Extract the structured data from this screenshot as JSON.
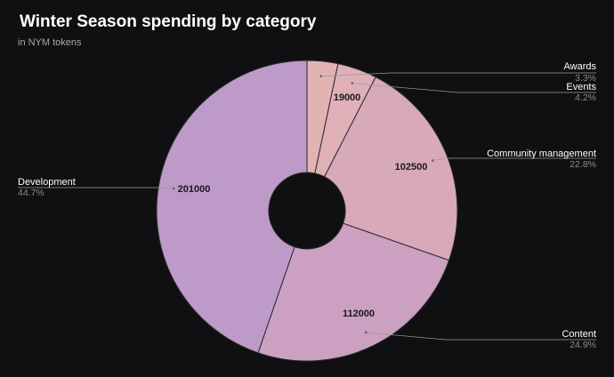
{
  "chart_data": {
    "type": "pie",
    "title": "Winter Season spending by category",
    "subtitle": "in NYM tokens",
    "slices": [
      {
        "label": "Awards",
        "value": 14900,
        "percent": "3.3%",
        "color": "#e2b3b3",
        "value_label": ""
      },
      {
        "label": "Events",
        "value": 19000,
        "percent": "4.2%",
        "color": "#dfb0b8",
        "value_label": "19000"
      },
      {
        "label": "Community management",
        "value": 102500,
        "percent": "22.8%",
        "color": "#d8a9b8",
        "value_label": "102500"
      },
      {
        "label": "Content",
        "value": 112000,
        "percent": "24.9%",
        "color": "#cba0c0",
        "value_label": "112000"
      },
      {
        "label": "Development",
        "value": 201000,
        "percent": "44.7%",
        "color": "#bd9ac8",
        "value_label": "201000"
      }
    ],
    "legend_placement": "callouts around chart"
  },
  "colors": {
    "background": "#101012",
    "divider": "#2a2a2a",
    "leader_line": "#9a9a9e"
  }
}
